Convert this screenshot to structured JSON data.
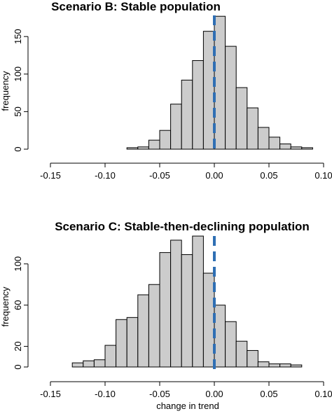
{
  "chart_data": [
    {
      "type": "bar",
      "title": "Scenario B: Stable population",
      "xlabel": "",
      "ylabel": "frequency",
      "xlim": [
        -0.15,
        0.1
      ],
      "ylim": [
        0,
        180
      ],
      "xticks": [
        -0.15,
        -0.1,
        -0.05,
        0.0,
        0.05,
        0.1
      ],
      "xtick_labels": [
        "-0.15",
        "-0.10",
        "-0.05",
        "0.00",
        "0.05",
        "0.10"
      ],
      "yticks": [
        0,
        50,
        100,
        150
      ],
      "ytick_labels": [
        "0",
        "50",
        "100",
        "150"
      ],
      "bin_width": 0.01,
      "bins": [
        {
          "x0": -0.08,
          "count": 2
        },
        {
          "x0": -0.07,
          "count": 3
        },
        {
          "x0": -0.06,
          "count": 12
        },
        {
          "x0": -0.05,
          "count": 25
        },
        {
          "x0": -0.04,
          "count": 60
        },
        {
          "x0": -0.03,
          "count": 92
        },
        {
          "x0": -0.02,
          "count": 118
        },
        {
          "x0": -0.01,
          "count": 157
        },
        {
          "x0": 0.0,
          "count": 177
        },
        {
          "x0": 0.01,
          "count": 137
        },
        {
          "x0": 0.02,
          "count": 82
        },
        {
          "x0": 0.03,
          "count": 55
        },
        {
          "x0": 0.04,
          "count": 29
        },
        {
          "x0": 0.05,
          "count": 16
        },
        {
          "x0": 0.06,
          "count": 7
        },
        {
          "x0": 0.07,
          "count": 3
        },
        {
          "x0": 0.08,
          "count": 2
        }
      ],
      "reference_line_x": 0.0,
      "reference_line_color": "#2f6fb4"
    },
    {
      "type": "bar",
      "title": "Scenario C: Stable-then-declining population",
      "xlabel": "change in trend",
      "ylabel": "frequency",
      "xlim": [
        -0.15,
        0.1
      ],
      "ylim": [
        0,
        125
      ],
      "xticks": [
        -0.15,
        -0.1,
        -0.05,
        0.0,
        0.05,
        0.1
      ],
      "xtick_labels": [
        "-0.15",
        "-0.10",
        "-0.05",
        "0.00",
        "0.05",
        "0.10"
      ],
      "yticks": [
        0,
        20,
        60,
        100
      ],
      "ytick_labels": [
        "0",
        "20",
        "60",
        "100"
      ],
      "bin_width": 0.01,
      "bins": [
        {
          "x0": -0.13,
          "count": 4
        },
        {
          "x0": -0.12,
          "count": 6
        },
        {
          "x0": -0.11,
          "count": 7
        },
        {
          "x0": -0.1,
          "count": 21
        },
        {
          "x0": -0.09,
          "count": 46
        },
        {
          "x0": -0.08,
          "count": 48
        },
        {
          "x0": -0.07,
          "count": 70
        },
        {
          "x0": -0.06,
          "count": 80
        },
        {
          "x0": -0.05,
          "count": 111
        },
        {
          "x0": -0.04,
          "count": 123
        },
        {
          "x0": -0.03,
          "count": 109
        },
        {
          "x0": -0.02,
          "count": 127
        },
        {
          "x0": -0.01,
          "count": 91
        },
        {
          "x0": 0.0,
          "count": 60
        },
        {
          "x0": 0.01,
          "count": 44
        },
        {
          "x0": 0.02,
          "count": 25
        },
        {
          "x0": 0.03,
          "count": 16
        },
        {
          "x0": 0.04,
          "count": 5
        },
        {
          "x0": 0.05,
          "count": 3
        },
        {
          "x0": 0.06,
          "count": 3
        },
        {
          "x0": 0.07,
          "count": 2
        }
      ],
      "reference_line_x": 0.0,
      "reference_line_color": "#2f6fb4"
    }
  ]
}
